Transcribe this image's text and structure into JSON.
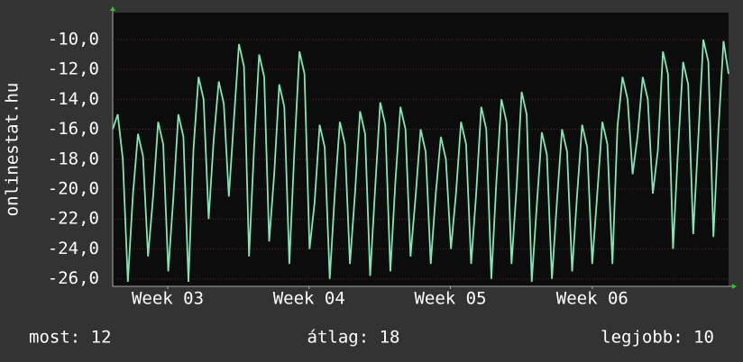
{
  "chart_data": {
    "type": "line",
    "y_label": "onlinestat.hu",
    "series": [
      {
        "color": "#7fe8b4",
        "values": [
          -16,
          -15,
          -18,
          -26.2,
          -20.4,
          -16.3,
          -17.8,
          -24.5,
          -20.5,
          -15.5,
          -17,
          -25.5,
          -20.6,
          -15,
          -16.5,
          -26.2,
          -17.3,
          -12.5,
          -14,
          -22,
          -16.7,
          -12.8,
          -14.3,
          -20.5,
          -15.4,
          -10.3,
          -11.8,
          -24.5,
          -17.2,
          -11,
          -12.5,
          -23.5,
          -19,
          -13,
          -14.5,
          -25,
          -17.4,
          -10.8,
          -12.3,
          -24,
          -20.9,
          -15.7,
          -17.2,
          -26,
          -20.3,
          -15.5,
          -17,
          -25,
          -20.3,
          -14.8,
          -16.3,
          -25.8,
          -19.9,
          -14.2,
          -15.7,
          -25.5,
          -19.5,
          -14.5,
          -16,
          -24.5,
          -20.5,
          -16,
          -17.5,
          -25,
          -20.3,
          -16.5,
          -18,
          -24,
          -20.3,
          -15.5,
          -17,
          -25,
          -20.3,
          -14.5,
          -16,
          -26,
          -19.5,
          -14,
          -15.5,
          -25,
          -19.9,
          -13.5,
          -15,
          -26.2,
          -21.1,
          -16.2,
          -17.7,
          -26,
          -20.8,
          -16,
          -17.5,
          -25.5,
          -20.4,
          -15.7,
          -17.2,
          -25,
          -20.3,
          -15.5,
          -17,
          -25,
          -15.8,
          -12.5,
          -14,
          -19,
          -16.4,
          -12.5,
          -14,
          -20.3,
          -17.4,
          -10.8,
          -12.3,
          -24,
          -17.3,
          -11.5,
          -13,
          -23,
          -16.6,
          -10,
          -11.5,
          -23.2,
          -16,
          -10.1,
          -12.3
        ]
      }
    ],
    "xlim": [
      0,
      122
    ],
    "xticks": [
      {
        "value": 10.9,
        "label": "Week 03"
      },
      {
        "value": 38.9,
        "label": "Week 04"
      },
      {
        "value": 66.9,
        "label": "Week 05"
      },
      {
        "value": 95,
        "label": "Week 06"
      }
    ],
    "ylim": [
      -26.5,
      -8.2
    ],
    "yticks": [
      {
        "value": -26,
        "label": "-26,0"
      },
      {
        "value": -24,
        "label": "-24,0"
      },
      {
        "value": -22,
        "label": "-22,0"
      },
      {
        "value": -20,
        "label": "-20,0"
      },
      {
        "value": -18,
        "label": "-18,0"
      },
      {
        "value": -16,
        "label": "-16,0"
      },
      {
        "value": -14,
        "label": "-14,0"
      },
      {
        "value": -12,
        "label": "-12,0"
      },
      {
        "value": -10,
        "label": "-10,0"
      }
    ],
    "grid": true,
    "footer": [
      "most: 12",
      "átlag: 18",
      "legjobb: 10"
    ]
  }
}
